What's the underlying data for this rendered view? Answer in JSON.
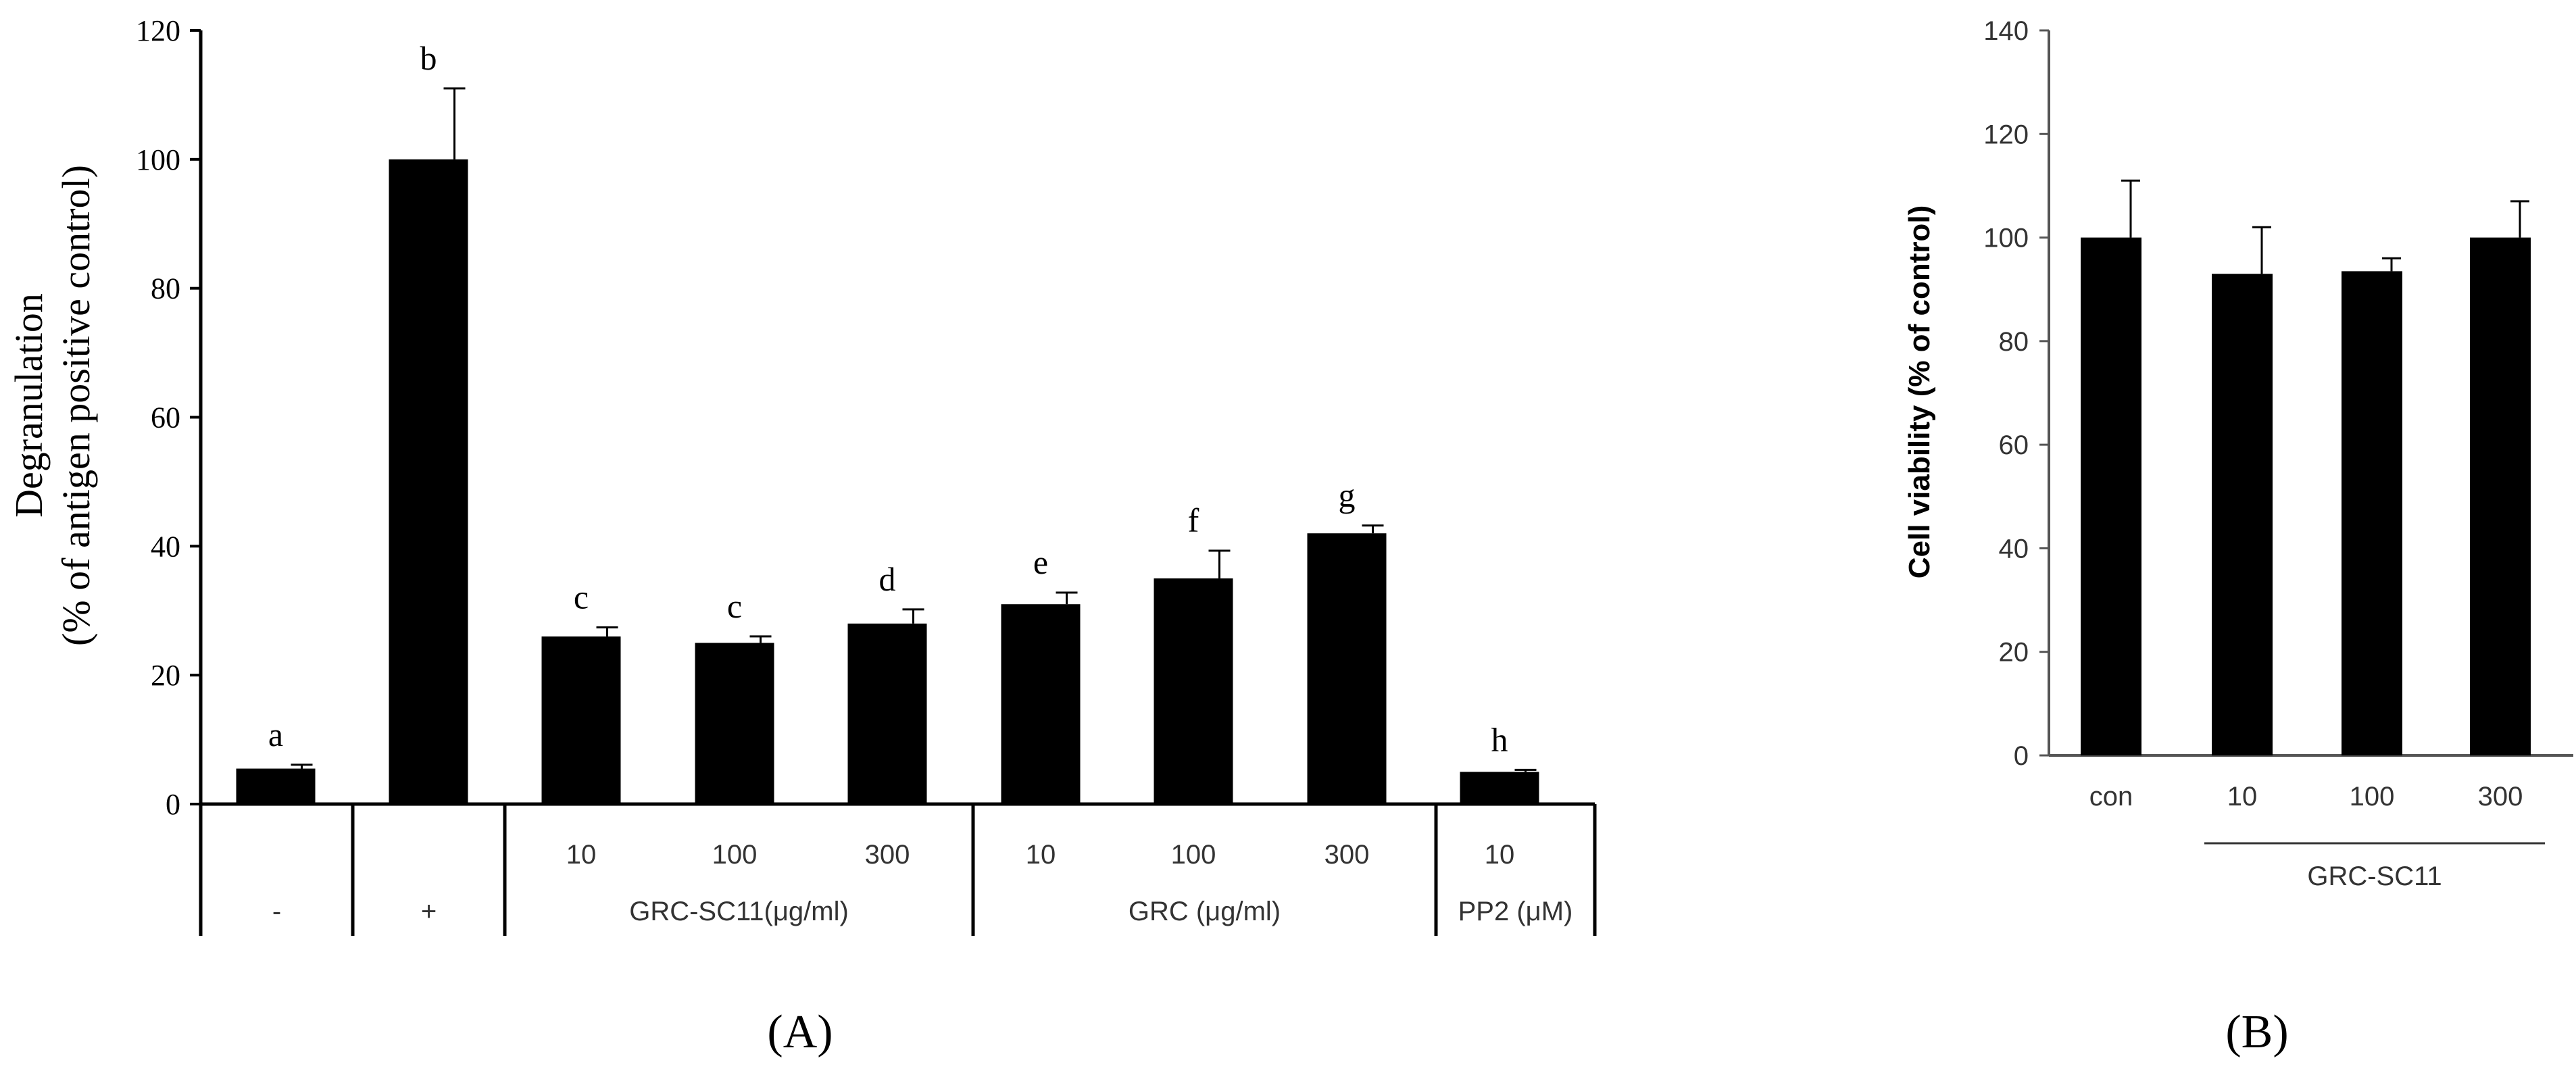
{
  "chart_data": [
    {
      "type": "bar",
      "panel_label": "(A)",
      "ylabel_line1": "Degranulation",
      "ylabel_line2": "(% of antigen positive control)",
      "ylim": [
        0,
        120
      ],
      "yticks": [
        0,
        20,
        40,
        60,
        80,
        100,
        120
      ],
      "bar_color": "#000000",
      "categories": [
        "-",
        "+",
        "10",
        "100",
        "300",
        "10",
        "100",
        "300",
        "10"
      ],
      "values": [
        5.5,
        100,
        26,
        25,
        28,
        31,
        35,
        42,
        5
      ],
      "errors": [
        0.6,
        11,
        1.4,
        1,
        2.2,
        1.8,
        4.3,
        1.2,
        0.3
      ],
      "letters": [
        "a",
        "b",
        "c",
        "c",
        "d",
        "e",
        "f",
        "g",
        "h"
      ],
      "dose_labels": [
        "",
        "",
        "10",
        "100",
        "300",
        "10",
        "100",
        "300",
        "10"
      ],
      "groups": [
        {
          "label": "-",
          "start": 0,
          "end": 0
        },
        {
          "label": "+",
          "start": 1,
          "end": 1
        },
        {
          "label": "GRC-SC11(μg/ml)",
          "start": 2,
          "end": 4
        },
        {
          "label": "GRC (μg/ml)",
          "start": 5,
          "end": 7
        },
        {
          "label": "PP2 (μM)",
          "start": 8,
          "end": 8
        }
      ]
    },
    {
      "type": "bar",
      "panel_label": "(B)",
      "ylabel": "Cell viability (% of control)",
      "ylim": [
        0,
        140
      ],
      "yticks": [
        0,
        20,
        40,
        60,
        80,
        100,
        120,
        140
      ],
      "bar_color": "#000000",
      "categories": [
        "con",
        "10",
        "100",
        "300"
      ],
      "values": [
        100,
        93,
        93.5,
        100
      ],
      "errors": [
        11,
        9,
        2.5,
        7
      ],
      "group_label": "GRC-SC11"
    }
  ]
}
